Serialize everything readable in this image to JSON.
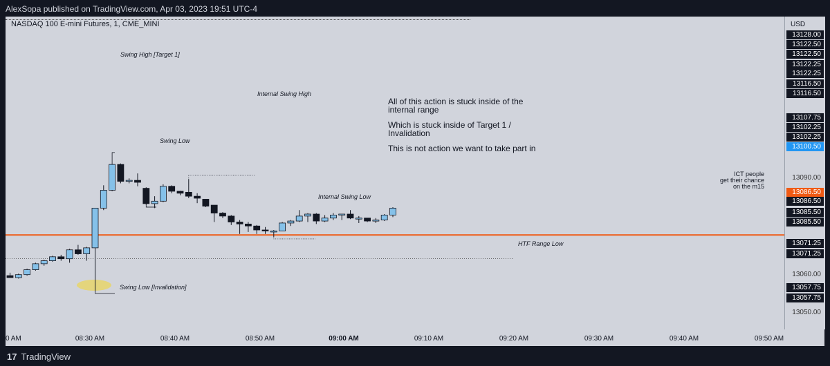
{
  "header": {
    "publish_text": "AlexSopa published on TradingView.com, Apr 03, 2023 19:51 UTC-4"
  },
  "chart": {
    "symbol_title": "NASDAQ 100 E-mini Futures, 1, CME_MINI",
    "currency": "USD",
    "annotations": {
      "swing_high": "Swing High [Target 1]",
      "internal_swing_high": "Internal Swing High",
      "swing_low": "Swing Low",
      "internal_swing_low": "Internal Swing Low",
      "htf_range_low": "HTF Range Low",
      "swing_low_invalidation": "Swing Low [Invalidation]"
    },
    "commentary": {
      "line1": "All of this action is stuck inside of the",
      "line2": "internal range",
      "line3": "Which is stuck inside of Target 1 /",
      "line4": "Invalidation",
      "line5": "This is not action we want to take part in"
    },
    "ict_note": {
      "line1": "ICT people",
      "line2": "get their chance",
      "line3": "on the m15"
    },
    "colors": {
      "up": "#85c1e9",
      "down": "#131722",
      "hline": "#f05a14",
      "highlight": "#e8d56b"
    },
    "hline_price": 13086.5
  },
  "price_scale": {
    "labels": [
      {
        "text": "13128.00",
        "style": "black"
      },
      {
        "text": "13122.50",
        "style": "black"
      },
      {
        "text": "13122.50",
        "style": "black"
      },
      {
        "text": "13122.25",
        "style": "black"
      },
      {
        "text": "13122.25",
        "style": "black"
      },
      {
        "text": "13116.50",
        "style": "black"
      },
      {
        "text": "13116.50",
        "style": "black"
      },
      {
        "text": "13107.75",
        "style": "black"
      },
      {
        "text": "13102.25",
        "style": "black"
      },
      {
        "text": "13102.25",
        "style": "black"
      },
      {
        "text": "13100.50",
        "style": "blue"
      },
      {
        "text": "13090.00",
        "style": "plain"
      },
      {
        "text": "13086.50",
        "style": "orange"
      },
      {
        "text": "13086.50",
        "style": "black"
      },
      {
        "text": "13085.50",
        "style": "black"
      },
      {
        "text": "13085.50",
        "style": "black"
      },
      {
        "text": "13071.25",
        "style": "black"
      },
      {
        "text": "13071.25",
        "style": "black"
      },
      {
        "text": "13060.00",
        "style": "plain"
      },
      {
        "text": "13057.75",
        "style": "black"
      },
      {
        "text": "13057.75",
        "style": "black"
      },
      {
        "text": "13050.00",
        "style": "plain"
      }
    ]
  },
  "time_scale": {
    "labels": [
      {
        "text": "0 AM",
        "bold": false
      },
      {
        "text": "08:30 AM",
        "bold": false
      },
      {
        "text": "08:40 AM",
        "bold": false
      },
      {
        "text": "08:50 AM",
        "bold": false
      },
      {
        "text": "09:00 AM",
        "bold": true
      },
      {
        "text": "09:10 AM",
        "bold": false
      },
      {
        "text": "09:20 AM",
        "bold": false
      },
      {
        "text": "09:30 AM",
        "bold": false
      },
      {
        "text": "09:40 AM",
        "bold": false
      },
      {
        "text": "09:50 AM",
        "bold": false
      }
    ]
  },
  "footer": {
    "brand": "TradingView",
    "logo_mark": "17"
  },
  "chart_data": {
    "type": "candlestick",
    "candles": [
      {
        "o": 13066.0,
        "h": 13067.5,
        "l": 13065.0,
        "c": 13065.0
      },
      {
        "o": 13065.0,
        "h": 13067.0,
        "l": 13064.5,
        "c": 13066.5
      },
      {
        "o": 13066.5,
        "h": 13069.5,
        "l": 13066.0,
        "c": 13069.0
      },
      {
        "o": 13069.0,
        "h": 13072.5,
        "l": 13068.5,
        "c": 13072.0
      },
      {
        "o": 13072.0,
        "h": 13074.0,
        "l": 13071.0,
        "c": 13073.5
      },
      {
        "o": 13073.5,
        "h": 13076.0,
        "l": 13073.0,
        "c": 13075.5
      },
      {
        "o": 13075.5,
        "h": 13076.5,
        "l": 13073.5,
        "c": 13074.5
      },
      {
        "o": 13074.5,
        "h": 13079.5,
        "l": 13072.5,
        "c": 13079.0
      },
      {
        "o": 13079.0,
        "h": 13081.5,
        "l": 13076.5,
        "c": 13077.0
      },
      {
        "o": 13077.0,
        "h": 13080.5,
        "l": 13073.5,
        "c": 13080.0
      },
      {
        "o": 13080.0,
        "h": 13100.0,
        "l": 13057.75,
        "c": 13100.0
      },
      {
        "o": 13100.0,
        "h": 13111.5,
        "l": 13099.0,
        "c": 13109.0
      },
      {
        "o": 13109.0,
        "h": 13122.5,
        "l": 13108.5,
        "c": 13122.0
      },
      {
        "o": 13122.0,
        "h": 13122.5,
        "l": 13112.5,
        "c": 13113.5
      },
      {
        "o": 13113.5,
        "h": 13115.0,
        "l": 13112.5,
        "c": 13114.0
      },
      {
        "o": 13114.0,
        "h": 13117.5,
        "l": 13111.0,
        "c": 13113.0
      },
      {
        "o": 13110.0,
        "h": 13110.5,
        "l": 13101.5,
        "c": 13102.25
      },
      {
        "o": 13102.25,
        "h": 13106.0,
        "l": 13100.0,
        "c": 13103.5
      },
      {
        "o": 13103.5,
        "h": 13112.0,
        "l": 13103.0,
        "c": 13111.0
      },
      {
        "o": 13111.0,
        "h": 13111.5,
        "l": 13107.5,
        "c": 13108.5
      },
      {
        "o": 13108.5,
        "h": 13108.75,
        "l": 13106.5,
        "c": 13107.5
      },
      {
        "o": 13108.0,
        "h": 13114.5,
        "l": 13105.0,
        "c": 13106.0
      },
      {
        "o": 13106.0,
        "h": 13107.5,
        "l": 13102.5,
        "c": 13105.0
      },
      {
        "o": 13104.5,
        "h": 13104.5,
        "l": 13100.5,
        "c": 13101.0
      },
      {
        "o": 13101.5,
        "h": 13101.5,
        "l": 13093.0,
        "c": 13097.5
      },
      {
        "o": 13097.5,
        "h": 13098.0,
        "l": 13095.0,
        "c": 13096.0
      },
      {
        "o": 13096.0,
        "h": 13096.5,
        "l": 13091.5,
        "c": 13093.0
      },
      {
        "o": 13093.0,
        "h": 13094.0,
        "l": 13087.0,
        "c": 13092.0
      },
      {
        "o": 13092.0,
        "h": 13093.0,
        "l": 13088.0,
        "c": 13091.0
      },
      {
        "o": 13091.0,
        "h": 13091.5,
        "l": 13087.0,
        "c": 13089.0
      },
      {
        "o": 13089.0,
        "h": 13090.5,
        "l": 13087.0,
        "c": 13088.5
      },
      {
        "o": 13088.5,
        "h": 13089.0,
        "l": 13085.5,
        "c": 13088.5
      },
      {
        "o": 13088.5,
        "h": 13093.0,
        "l": 13088.5,
        "c": 13092.5
      },
      {
        "o": 13092.5,
        "h": 13094.0,
        "l": 13091.0,
        "c": 13093.5
      },
      {
        "o": 13093.5,
        "h": 13099.0,
        "l": 13093.0,
        "c": 13096.0
      },
      {
        "o": 13096.0,
        "h": 13097.5,
        "l": 13093.0,
        "c": 13097.0
      },
      {
        "o": 13097.0,
        "h": 13097.5,
        "l": 13092.0,
        "c": 13093.5
      },
      {
        "o": 13093.5,
        "h": 13096.5,
        "l": 13093.0,
        "c": 13095.0
      },
      {
        "o": 13095.0,
        "h": 13097.5,
        "l": 13094.0,
        "c": 13096.5
      },
      {
        "o": 13096.5,
        "h": 13097.0,
        "l": 13094.0,
        "c": 13097.0
      },
      {
        "o": 13097.0,
        "h": 13099.0,
        "l": 13094.5,
        "c": 13095.0
      },
      {
        "o": 13095.0,
        "h": 13096.0,
        "l": 13092.5,
        "c": 13095.0
      },
      {
        "o": 13095.0,
        "h": 13095.0,
        "l": 13093.0,
        "c": 13093.5
      },
      {
        "o": 13093.5,
        "h": 13095.0,
        "l": 13092.5,
        "c": 13094.0
      },
      {
        "o": 13094.0,
        "h": 13097.0,
        "l": 13093.5,
        "c": 13096.5
      },
      {
        "o": 13096.5,
        "h": 13100.5,
        "l": 13095.5,
        "c": 13100.0
      }
    ]
  }
}
